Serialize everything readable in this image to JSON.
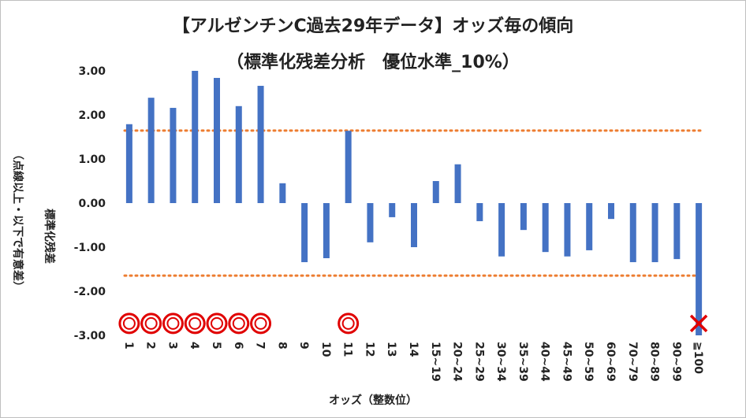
{
  "chart_data": {
    "type": "bar",
    "title": "【アルゼンチンC過去29年データ】オッズ毎の傾向",
    "subtitle": "（標準化残差分析　優位水準_10%）",
    "xlabel": "オッズ（整数位）",
    "ylabel": "標準化残差",
    "ylabel2": "（点線以上・以下で有意差）",
    "ylim": [
      -3,
      3
    ],
    "yticks": [
      3,
      2,
      1,
      0,
      -1,
      -2,
      -3
    ],
    "ytick_labels": [
      "3.00",
      "2.00",
      "1.00",
      "0.00",
      "-1.00",
      "-2.00",
      "-3.00"
    ],
    "categories": [
      "1",
      "2",
      "3",
      "4",
      "5",
      "6",
      "7",
      "8",
      "9",
      "10",
      "11",
      "12",
      "13",
      "14",
      "15~19",
      "20~24",
      "25~29",
      "30~34",
      "35~39",
      "40~44",
      "45~49",
      "50~59",
      "60~69",
      "70~79",
      "80~89",
      "90~99",
      "≧100"
    ],
    "values": [
      1.79,
      2.39,
      2.16,
      3.02,
      2.84,
      2.2,
      2.66,
      0.45,
      -1.34,
      -1.25,
      1.64,
      -0.89,
      -0.32,
      -1.0,
      0.5,
      0.88,
      -0.41,
      -1.21,
      -0.61,
      -1.11,
      -1.21,
      -1.07,
      -0.36,
      -1.34,
      -1.34,
      -1.27,
      -3.1
    ],
    "threshold_lines": [
      1.645,
      -1.645
    ],
    "marker_y": -2.73,
    "markers": [
      "o",
      "o",
      "o",
      "o",
      "o",
      "o",
      "o",
      "",
      "",
      "",
      "o",
      "",
      "",
      "",
      "",
      "",
      "",
      "",
      "",
      "",
      "",
      "",
      "",
      "",
      "",
      "",
      "x"
    ],
    "grid": false,
    "colors": {
      "bar": "#4472C4",
      "threshold": "#ED7D31",
      "circle": "#E00000",
      "cross": "#E00000"
    }
  }
}
